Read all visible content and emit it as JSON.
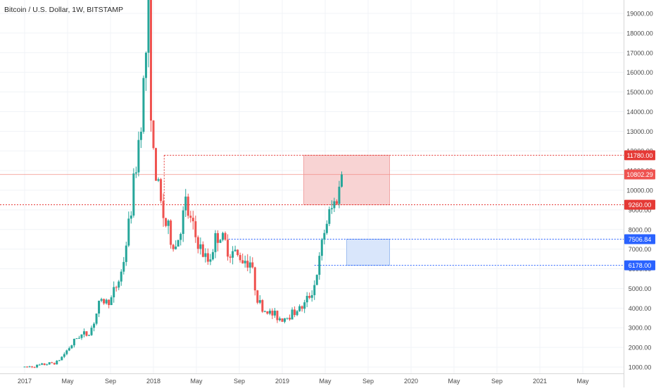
{
  "header": {
    "title": "Bitcoin / U.S. Dollar, 1W, BITSTAMP"
  },
  "colors": {
    "up": "#26a69a",
    "down": "#ef5350",
    "resistance": "#e53935",
    "support": "#2962ff",
    "current": "#f28b82",
    "red_zone_fill": "#f8d3d3",
    "blue_zone_fill": "#d9e6fb",
    "axis_text": "#4a4a4a",
    "grid": "#f0f3f7"
  },
  "chart_data": {
    "type": "candlestick",
    "title": "Bitcoin / U.S. Dollar, 1W, BITSTAMP",
    "x_ticks": [
      "2017",
      "May",
      "Sep",
      "2018",
      "May",
      "Sep",
      "2019",
      "May",
      "Sep",
      "2020",
      "May",
      "Sep",
      "2021",
      "May"
    ],
    "y_ticks": [
      "1000.00",
      "2000.00",
      "3000.00",
      "4000.00",
      "5000.00",
      "6000.00",
      "7000.00",
      "8000.00",
      "9000.00",
      "10000.00",
      "11000.00",
      "12000.00",
      "13000.00",
      "14000.00",
      "15000.00",
      "16000.00",
      "17000.00",
      "18000.00",
      "19000.00"
    ],
    "ylim": [
      650,
      19700
    ],
    "current_price": {
      "value": 10802.29,
      "label": "10802.29"
    },
    "levels": [
      {
        "name": "resistance-upper",
        "value": 11780,
        "label": "11780.00",
        "style": "red"
      },
      {
        "name": "resistance-lower",
        "value": 9260,
        "label": "9260.00",
        "style": "red"
      },
      {
        "name": "support-upper",
        "value": 7506.84,
        "label": "7506.84",
        "style": "blue"
      },
      {
        "name": "support-lower",
        "value": 6178,
        "label": "6178.00",
        "style": "blue"
      }
    ],
    "zones": [
      {
        "name": "resistance-zone",
        "top": 11780,
        "bottom": 9260,
        "x_start": "2019-03",
        "x_end": "2019-11",
        "style": "red"
      },
      {
        "name": "support-zone",
        "top": 7506.84,
        "bottom": 6178,
        "x_start": "2019-07",
        "x_end": "2019-11",
        "style": "blue"
      }
    ],
    "key_points": [
      [
        "2017-01",
        1000
      ],
      [
        "2017-02",
        1050
      ],
      [
        "2017-03",
        1150
      ],
      [
        "2017-04",
        1250
      ],
      [
        "2017-05",
        1900
      ],
      [
        "2017-06",
        2600
      ],
      [
        "2017-07",
        2700
      ],
      [
        "2017-08",
        4300
      ],
      [
        "2017-09",
        4400
      ],
      [
        "2017-10",
        5800
      ],
      [
        "2017-11",
        9500
      ],
      [
        "2017-12-17",
        19000
      ],
      [
        "2018-01",
        11500
      ],
      [
        "2018-02",
        8500
      ],
      [
        "2018-03",
        7000
      ],
      [
        "2018-04",
        9200
      ],
      [
        "2018-05",
        7500
      ],
      [
        "2018-06",
        6300
      ],
      [
        "2018-07",
        7800
      ],
      [
        "2018-08",
        7000
      ],
      [
        "2018-09",
        6600
      ],
      [
        "2018-10",
        6400
      ],
      [
        "2018-11",
        4000
      ],
      [
        "2018-12",
        3700
      ],
      [
        "2019-01",
        3450
      ],
      [
        "2019-02",
        3800
      ],
      [
        "2019-03",
        4100
      ],
      [
        "2019-04",
        5200
      ],
      [
        "2019-05",
        8200
      ],
      [
        "2019-06-24",
        10802.29
      ]
    ]
  }
}
